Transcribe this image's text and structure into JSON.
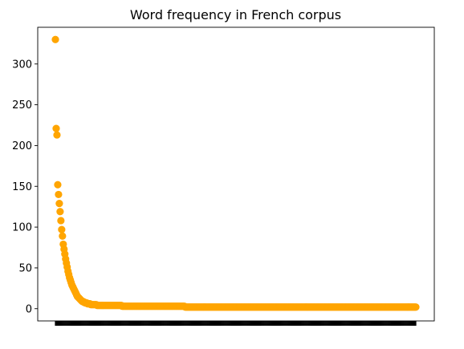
{
  "chart_data": {
    "type": "scatter",
    "title": "Word frequency in French corpus",
    "xlabel": "",
    "ylabel": "",
    "ylim": [
      -15,
      345
    ],
    "yticks": [
      0,
      50,
      100,
      150,
      200,
      250,
      300
    ],
    "grid": false,
    "n_points": 450,
    "x_tick_labels_shown": false,
    "color": "#FFA500",
    "series": [
      {
        "values": [
          330,
          221,
          213,
          152,
          140,
          129,
          119,
          108,
          97,
          89,
          79,
          73,
          67,
          61,
          56,
          51,
          46,
          42,
          38,
          35,
          32,
          29,
          27,
          25,
          23,
          21,
          19,
          17,
          15,
          14,
          13,
          12,
          11,
          10,
          9,
          9,
          8,
          8,
          7,
          7,
          7,
          6,
          6,
          6,
          6,
          5,
          5,
          5,
          5,
          5,
          5,
          5,
          5,
          4,
          4,
          4,
          4,
          4,
          4,
          4,
          4,
          4,
          4,
          4,
          4,
          4,
          4,
          4,
          4,
          4,
          4,
          4,
          4,
          4,
          4,
          4,
          4,
          4,
          4,
          4,
          4,
          4,
          4,
          4,
          4,
          3,
          3,
          3,
          3,
          3,
          3,
          3,
          3,
          3,
          3,
          3,
          3,
          3,
          3,
          3,
          3,
          3,
          3,
          3,
          3,
          3,
          3,
          3,
          3,
          3,
          3,
          3,
          3,
          3,
          3,
          3,
          3,
          3,
          3,
          3,
          3,
          3,
          3,
          3,
          3,
          3,
          3,
          3,
          3,
          3,
          3,
          3,
          3,
          3,
          3,
          3,
          3,
          3,
          3,
          3,
          3,
          3,
          3,
          3,
          3,
          3,
          3,
          3,
          3,
          3,
          3,
          3,
          3,
          3,
          3,
          3,
          3,
          3,
          3,
          3,
          3,
          3,
          3,
          3,
          3,
          2,
          2,
          2,
          2,
          2,
          2,
          2,
          2,
          2,
          2,
          2,
          2,
          2,
          2,
          2,
          2,
          2,
          2,
          2,
          2,
          2,
          2,
          2,
          2,
          2,
          2,
          2,
          2,
          2,
          2,
          2,
          2,
          2,
          2,
          2,
          2,
          2,
          2,
          2,
          2,
          2,
          2,
          2,
          2,
          2,
          2,
          2,
          2,
          2,
          2,
          2,
          2,
          2,
          2,
          2,
          2,
          2,
          2,
          2,
          2,
          2,
          2,
          2,
          2,
          2,
          2,
          2,
          2,
          2,
          2,
          2,
          2,
          2,
          2,
          2,
          2,
          2,
          2,
          2,
          2,
          2,
          2,
          2,
          2,
          2,
          2,
          2,
          2,
          2,
          2,
          2,
          2,
          2,
          2,
          2,
          2,
          2,
          2,
          2,
          2,
          2,
          2,
          2,
          2,
          2,
          2,
          2,
          2,
          2,
          2,
          2,
          2,
          2,
          2,
          2,
          2,
          2,
          2,
          2,
          2,
          2,
          2,
          2,
          2,
          2,
          2,
          2,
          2,
          2,
          2,
          2,
          2,
          2,
          2,
          2,
          2,
          2,
          2,
          2,
          2,
          2,
          2,
          2,
          2,
          2,
          2,
          2,
          2,
          2,
          2,
          2,
          2,
          2,
          2,
          2,
          2,
          2,
          2,
          2,
          2,
          2,
          2,
          2,
          2,
          2,
          2,
          2,
          2,
          2,
          2,
          2,
          2,
          2,
          2,
          2,
          2,
          2,
          2,
          2,
          2,
          2,
          2,
          2,
          2,
          2,
          2,
          2,
          2,
          2,
          2,
          2,
          2,
          2,
          2,
          2,
          2,
          2,
          2,
          2,
          2,
          2,
          2,
          2,
          2,
          2,
          2,
          2,
          2,
          2,
          2,
          2,
          2,
          2,
          2,
          2,
          2,
          2,
          2,
          2,
          2,
          2,
          2,
          2,
          2,
          2,
          2,
          2,
          2,
          2,
          2,
          2,
          2,
          2,
          2,
          2,
          2,
          2,
          2,
          2,
          2,
          2,
          2,
          2,
          2,
          2,
          2,
          2,
          2,
          2,
          2,
          2,
          2,
          2,
          2,
          2,
          2,
          2,
          2,
          2,
          2,
          2,
          2,
          2,
          2,
          2,
          2,
          2,
          2,
          2,
          2,
          2,
          2,
          2,
          2,
          2,
          2,
          2,
          2,
          2,
          2,
          2,
          2,
          2,
          2,
          2,
          2,
          2,
          2,
          2,
          2,
          2,
          2,
          2,
          2
        ]
      }
    ]
  }
}
